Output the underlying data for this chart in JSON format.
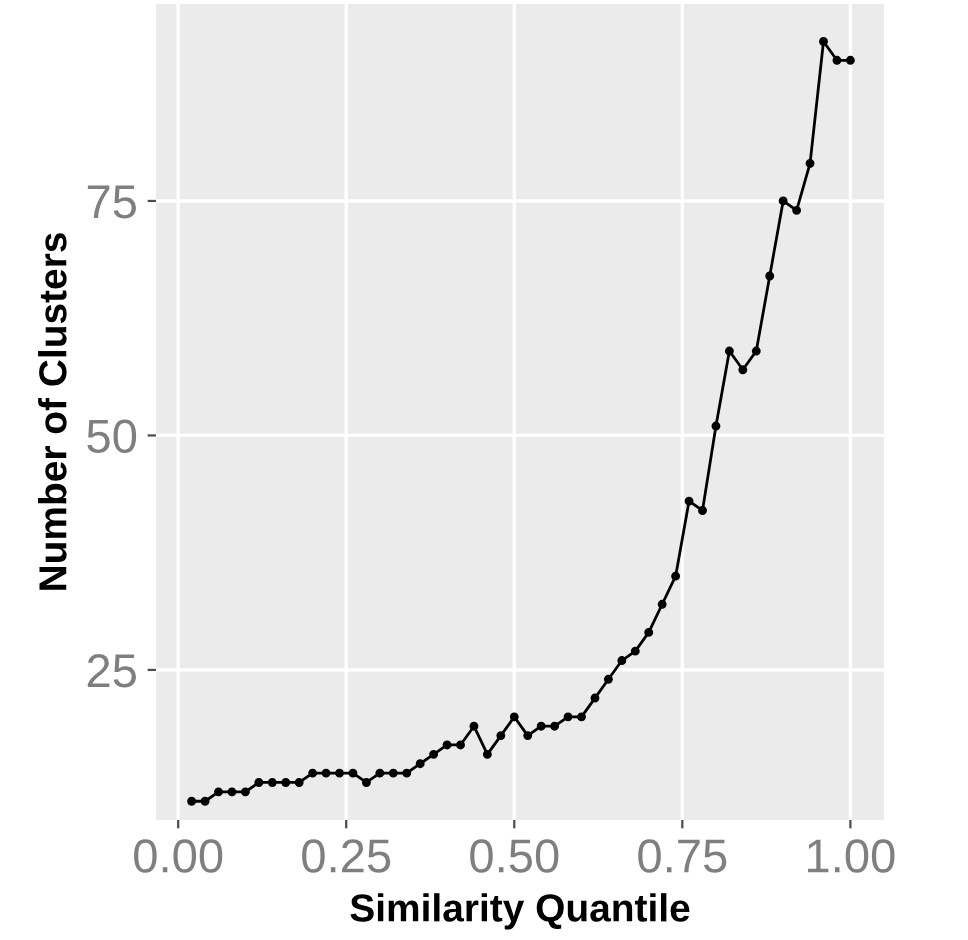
{
  "chart_data": {
    "type": "line",
    "xlabel": "Similarity Quantile",
    "ylabel": "Number of Clusters",
    "x": [
      0.02,
      0.04,
      0.06,
      0.08,
      0.1,
      0.12,
      0.14,
      0.16,
      0.18,
      0.2,
      0.22,
      0.24,
      0.26,
      0.28,
      0.3,
      0.32,
      0.34,
      0.36,
      0.38,
      0.4,
      0.42,
      0.44,
      0.46,
      0.48,
      0.5,
      0.52,
      0.54,
      0.56,
      0.58,
      0.6,
      0.62,
      0.64,
      0.66,
      0.68,
      0.7,
      0.72,
      0.74,
      0.76,
      0.78,
      0.8,
      0.82,
      0.84,
      0.86,
      0.88,
      0.9,
      0.92,
      0.94,
      0.96,
      0.98,
      1.0
    ],
    "series": [
      {
        "color": "#000000",
        "values": [
          11,
          11,
          12,
          12,
          12,
          13,
          13,
          13,
          13,
          14,
          14,
          14,
          14,
          13,
          14,
          14,
          14,
          15,
          16,
          17,
          17,
          19,
          16,
          18,
          20,
          18,
          19,
          19,
          20,
          20,
          22,
          24,
          26,
          27,
          29,
          32,
          35,
          43,
          42,
          51,
          59,
          57,
          59,
          67,
          75,
          74,
          79,
          92,
          90,
          90
        ]
      }
    ],
    "xlim": [
      -0.033,
      1.05
    ],
    "ylim": [
      9,
      96
    ],
    "xticks": [
      {
        "value": 0,
        "label": "0.00"
      },
      {
        "value": 0.25,
        "label": "0.25"
      },
      {
        "value": 0.5,
        "label": "0.50"
      },
      {
        "value": 0.75,
        "label": "0.75"
      },
      {
        "value": 1,
        "label": "1.00"
      }
    ],
    "yticks": [
      25,
      50,
      75
    ],
    "grid": true,
    "marker": "circle",
    "line_style": "solid"
  }
}
